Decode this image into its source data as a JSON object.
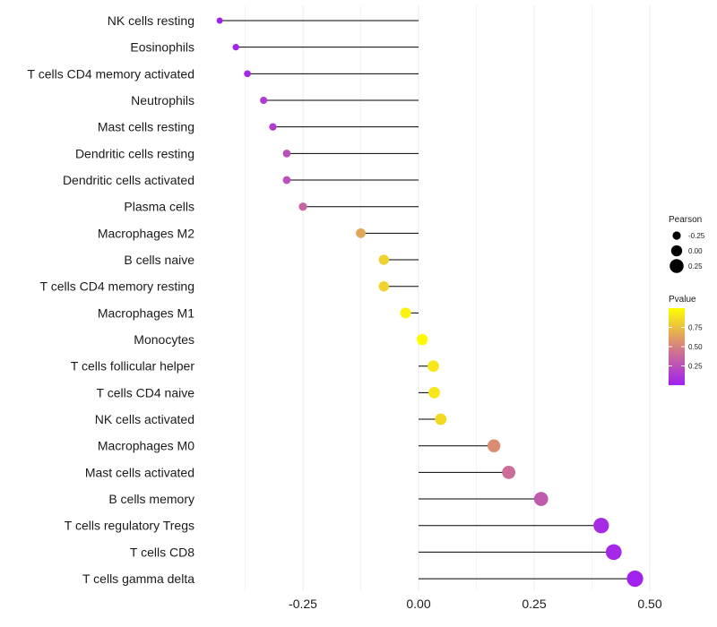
{
  "chart_data": {
    "type": "lollipop",
    "x_ticks": [
      -0.25,
      0.0,
      0.25,
      0.5
    ],
    "x_tick_labels": [
      "-0.25",
      "0.00",
      "0.25",
      "0.50"
    ],
    "xlim": [
      -0.45,
      0.52
    ],
    "categories": [
      "NK cells resting",
      "Eosinophils",
      "T cells CD4 memory activated",
      "Neutrophils",
      "Mast cells resting",
      "Dendritic cells resting",
      "Dendritic cells activated",
      "Plasma cells",
      "Macrophages M2",
      "B cells naive",
      "T cells CD4 memory resting",
      "Macrophages M1",
      "Monocytes",
      "T cells follicular helper",
      "T cells CD4 naive",
      "NK cells activated",
      "Macrophages M0",
      "Mast cells activated",
      "B cells memory",
      "T cells regulatory  Tregs",
      "T cells CD8",
      "T cells gamma delta"
    ],
    "pearson": [
      -0.43,
      -0.395,
      -0.37,
      -0.335,
      -0.315,
      -0.285,
      -0.285,
      -0.25,
      -0.125,
      -0.075,
      -0.075,
      -0.028,
      0.008,
      0.032,
      0.034,
      0.048,
      0.163,
      0.195,
      0.265,
      0.395,
      0.422,
      0.468
    ],
    "pvalue": [
      0.02,
      0.03,
      0.05,
      0.15,
      0.15,
      0.25,
      0.25,
      0.35,
      0.65,
      0.82,
      0.82,
      0.95,
      0.98,
      0.9,
      0.9,
      0.85,
      0.55,
      0.4,
      0.3,
      0.06,
      0.04,
      0.01
    ],
    "size_legend": {
      "title": "Pearson",
      "entries": [
        "-0.25",
        "0.00",
        "0.25"
      ],
      "values": [
        -0.25,
        0.0,
        0.25
      ]
    },
    "color_legend": {
      "title": "Pvalue",
      "labels": [
        "0.75",
        "0.50",
        "0.25"
      ],
      "values": [
        0.75,
        0.5,
        0.25
      ],
      "range": [
        0.0,
        1.0
      ],
      "low_color": "#a020f0",
      "mid_color": "#d68080",
      "high_color": "#ffff00"
    },
    "stem_color": "#000000",
    "gridline_color": "#ebebeb"
  }
}
